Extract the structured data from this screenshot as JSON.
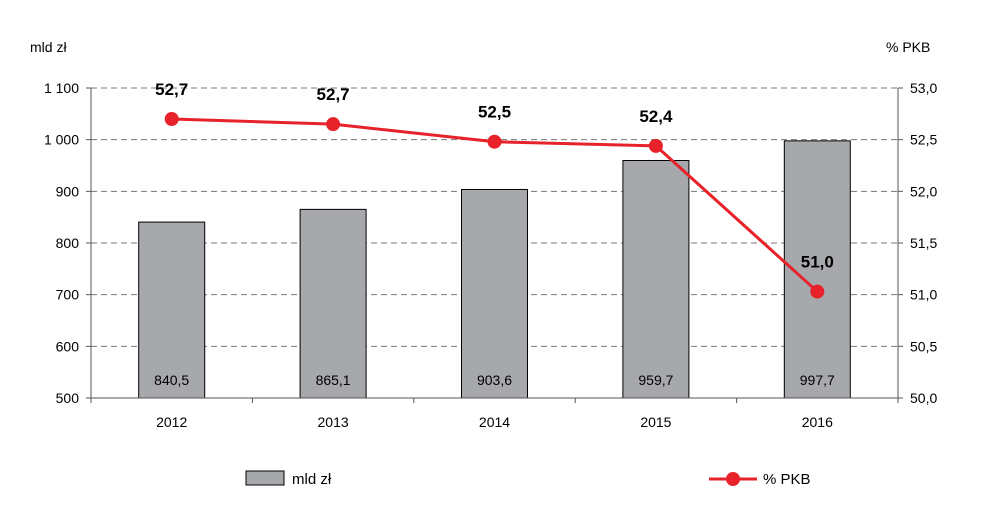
{
  "chart_data": {
    "type": "bar+line",
    "categories": [
      "2012",
      "2013",
      "2014",
      "2015",
      "2016"
    ],
    "series": [
      {
        "name": "mld zł",
        "type": "bar",
        "axis": "left",
        "values": [
          840.5,
          865.1,
          903.6,
          959.7,
          997.7
        ],
        "labels": [
          "840,5",
          "865,1",
          "903,6",
          "959,7",
          "997,7"
        ],
        "color": "#a6a8ab"
      },
      {
        "name": "% PKB",
        "type": "line",
        "axis": "right",
        "values": [
          52.7,
          52.65,
          52.48,
          52.44,
          51.03
        ],
        "labels": [
          "52,7",
          "52,7",
          "52,5",
          "52,4",
          "51,0"
        ],
        "color": "#e8222a"
      }
    ],
    "y_left": {
      "label": "mld zł",
      "ylim": [
        500,
        1100
      ],
      "ticks": [
        500,
        600,
        700,
        800,
        900,
        1000,
        1100
      ],
      "tick_labels": [
        "500",
        "600",
        "700",
        "800",
        "900",
        "1 000",
        "1 100"
      ]
    },
    "y_right": {
      "label": "% PKB",
      "ylim": [
        50.0,
        53.0
      ],
      "ticks": [
        50.0,
        50.5,
        51.0,
        51.5,
        52.0,
        52.5,
        53.0
      ],
      "tick_labels": [
        "50,0",
        "50,5",
        "51,0",
        "51,5",
        "52,0",
        "52,5",
        "53,0"
      ]
    },
    "grid": "horizontal-dashed",
    "legend": {
      "placement": "bottom",
      "items": [
        "mld zł",
        "% PKB"
      ]
    }
  }
}
